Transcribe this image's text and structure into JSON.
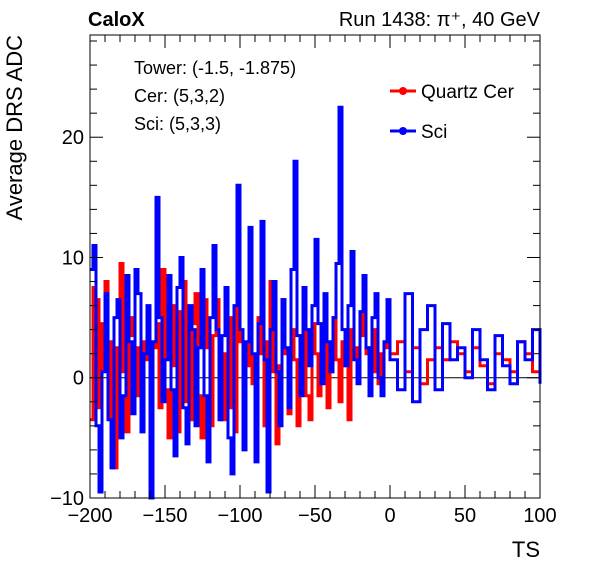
{
  "chart_data": {
    "type": "line",
    "title_left": "CaloX",
    "title_right": "Run 1438: π⁺, 40 GeV",
    "xlabel": "TS",
    "ylabel": "Average DRS ADC",
    "xlim": [
      -200,
      100
    ],
    "ylim": [
      -10,
      28.5
    ],
    "x_ticks": [
      -200,
      -150,
      -100,
      -50,
      0,
      50,
      100
    ],
    "x_tick_labels": [
      "−200",
      "−150",
      "−100",
      "−50",
      "0",
      "50",
      "100"
    ],
    "y_ticks": [
      -10,
      0,
      10,
      20
    ],
    "y_tick_labels": [
      "−10",
      "0",
      "10",
      "20"
    ],
    "annotations": [
      "Tower: (-1.5, -1.875)",
      "Cer: (5,3,2)",
      "Sci: (5,3,3)"
    ],
    "legend_placement": "top-right",
    "series": [
      {
        "name": "Quartz Cer",
        "color": "#ff0000",
        "x": [
          -200,
          -198,
          -196,
          -194,
          -192,
          -190,
          -188,
          -186,
          -184,
          -182,
          -180,
          -178,
          -176,
          -174,
          -172,
          -170,
          -168,
          -166,
          -164,
          -162,
          -160,
          -158,
          -156,
          -154,
          -152,
          -150,
          -148,
          -146,
          -144,
          -142,
          -140,
          -138,
          -136,
          -134,
          -132,
          -130,
          -128,
          -126,
          -124,
          -122,
          -120,
          -118,
          -116,
          -114,
          -112,
          -110,
          -108,
          -106,
          -104,
          -102,
          -100,
          -98,
          -96,
          -94,
          -92,
          -90,
          -88,
          -86,
          -84,
          -82,
          -80,
          -78,
          -76,
          -74,
          -72,
          -70,
          -68,
          -66,
          -64,
          -62,
          -60,
          -58,
          -56,
          -54,
          -52,
          -50,
          -48,
          -46,
          -44,
          -42,
          -40,
          -38,
          -36,
          -34,
          -32,
          -30,
          -28,
          -26,
          -24,
          -22,
          -20,
          -18,
          -16,
          -14,
          -12,
          -10,
          -8,
          -6,
          -4,
          -2,
          0,
          5,
          10,
          15,
          20,
          25,
          30,
          35,
          40,
          45,
          50,
          55,
          60,
          65,
          70,
          75,
          80,
          85,
          90,
          95,
          100
        ],
        "values": [
          -3.5,
          7.5,
          6.5,
          -2.5,
          4.5,
          8.0,
          3.0,
          -5.0,
          -7.5,
          2.5,
          9.5,
          0.5,
          -4.5,
          5.0,
          3.5,
          -1.5,
          2.5,
          -2.0,
          3.0,
          1.5,
          -2.0,
          2.5,
          4.5,
          -2.5,
          9.0,
          -1.0,
          -5.0,
          6.0,
          1.0,
          -4.5,
          5.5,
          8.0,
          -2.0,
          -3.5,
          4.5,
          7.0,
          -1.5,
          -5.0,
          6.5,
          2.5,
          -4.0,
          3.5,
          6.5,
          -1.0,
          -3.5,
          2.0,
          5.0,
          -2.5,
          -4.5,
          6.5,
          3.0,
          -3.0,
          1.0,
          4.0,
          -0.5,
          -3.5,
          5.0,
          2.0,
          -4.0,
          3.0,
          8.0,
          0.5,
          -5.5,
          1.0,
          6.5,
          2.0,
          -3.0,
          4.0,
          1.5,
          -4.0,
          3.5,
          7.5,
          -1.5,
          -3.5,
          4.5,
          2.0,
          -1.5,
          1.5,
          3.0,
          -2.5,
          0.5,
          5.0,
          1.5,
          -2.0,
          3.0,
          1.0,
          -3.5,
          4.0,
          2.5,
          1.0,
          3.5,
          5.5,
          2.0,
          2.5,
          4.0,
          0.5,
          -0.5,
          2.0,
          2.5,
          3.0,
          2.0,
          3.0,
          0.5,
          2.5,
          -0.5,
          1.5,
          2.5,
          1.5,
          3.0,
          2.0,
          0.5,
          2.5,
          1.0,
          -0.5,
          2.0,
          1.5,
          0.5,
          3.0,
          2.0,
          0.5,
          1.5
        ]
      },
      {
        "name": "Sci",
        "color": "#0000ff",
        "x": [
          -200,
          -198,
          -196,
          -194,
          -192,
          -190,
          -188,
          -186,
          -184,
          -182,
          -180,
          -178,
          -176,
          -174,
          -172,
          -170,
          -168,
          -166,
          -164,
          -162,
          -160,
          -158,
          -156,
          -154,
          -152,
          -150,
          -148,
          -146,
          -144,
          -142,
          -140,
          -138,
          -136,
          -134,
          -132,
          -130,
          -128,
          -126,
          -124,
          -122,
          -120,
          -118,
          -116,
          -114,
          -112,
          -110,
          -108,
          -106,
          -104,
          -102,
          -100,
          -98,
          -96,
          -94,
          -92,
          -90,
          -88,
          -86,
          -84,
          -82,
          -80,
          -78,
          -76,
          -74,
          -72,
          -70,
          -68,
          -66,
          -64,
          -62,
          -60,
          -58,
          -56,
          -54,
          -52,
          -50,
          -48,
          -46,
          -44,
          -42,
          -40,
          -38,
          -36,
          -34,
          -32,
          -30,
          -28,
          -26,
          -24,
          -22,
          -20,
          -18,
          -16,
          -14,
          -12,
          -10,
          -8,
          -6,
          -4,
          -2,
          0,
          5,
          10,
          15,
          20,
          25,
          30,
          35,
          40,
          45,
          50,
          55,
          60,
          65,
          70,
          75,
          80,
          85,
          90,
          95,
          100
        ],
        "values": [
          9.0,
          11.0,
          -4.0,
          -9.5,
          0.5,
          7.0,
          -3.5,
          -7.5,
          5.0,
          6.5,
          -5.0,
          -1.5,
          8.5,
          3.0,
          -3.0,
          9.0,
          7.0,
          -4.5,
          2.0,
          6.0,
          -10.0,
          3.0,
          15.0,
          5.0,
          -2.0,
          1.5,
          8.5,
          -1.0,
          -6.5,
          7.5,
          10.0,
          -2.5,
          -5.5,
          6.0,
          4.0,
          -4.0,
          2.5,
          9.0,
          -1.5,
          -7.0,
          5.0,
          11.0,
          4.0,
          -3.5,
          3.5,
          7.5,
          -5.0,
          -8.0,
          6.0,
          16.0,
          4.0,
          -6.0,
          3.0,
          12.5,
          2.0,
          -7.0,
          4.5,
          13.0,
          1.5,
          -9.5,
          4.0,
          8.0,
          0.5,
          -4.0,
          6.5,
          2.5,
          -2.5,
          9.0,
          18.0,
          3.5,
          -1.5,
          7.5,
          4.0,
          1.0,
          6.0,
          11.5,
          4.5,
          -0.5,
          7.0,
          3.0,
          0.5,
          5.0,
          9.5,
          22.5,
          4.0,
          1.0,
          6.0,
          10.5,
          1.5,
          -0.5,
          5.5,
          8.5,
          2.5,
          -1.5,
          5.0,
          7.0,
          0.0,
          -1.5,
          3.0,
          6.5,
          1.5,
          -1.0,
          7.0,
          -2.0,
          4.0,
          6.0,
          -1.0,
          4.5,
          1.5,
          2.5,
          0.0,
          4.0,
          1.5,
          -1.0,
          3.5,
          1.0,
          -0.5,
          3.0,
          1.5,
          4.0,
          -0.5
        ]
      }
    ]
  }
}
